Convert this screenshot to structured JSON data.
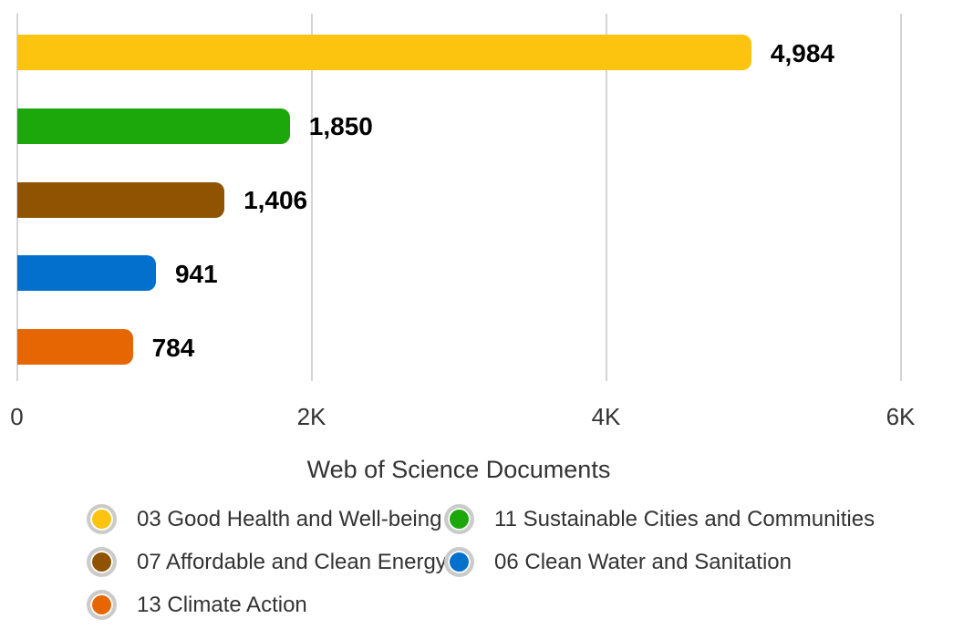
{
  "chart_data": {
    "type": "bar",
    "orientation": "horizontal",
    "title": "",
    "xlabel": "Web of Science Documents",
    "ylabel": "",
    "categories": [
      "03 Good Health and Well-being",
      "11 Sustainable Cities and Communities",
      "07 Affordable and Clean Energy",
      "06 Clean Water and Sanitation",
      "13 Climate Action"
    ],
    "values": [
      4984,
      1850,
      1406,
      941,
      784
    ],
    "value_labels": [
      "4,984",
      "1,850",
      "1,406",
      "941",
      "784"
    ],
    "colors": [
      "#FCC30F",
      "#1CA80A",
      "#8F5302",
      "#0470CE",
      "#E66603"
    ],
    "xlim": [
      0,
      6000
    ],
    "x_ticks": [
      {
        "label": "0",
        "value": 0
      },
      {
        "label": "2K",
        "value": 2000
      },
      {
        "label": "4K",
        "value": 4000
      },
      {
        "label": "6K",
        "value": 6000
      }
    ],
    "grid": "vertical-only",
    "gridline_color": "#d4d4d4",
    "legend_position": "bottom"
  },
  "legend": {
    "items": [
      {
        "label": "03 Good Health and Well-being",
        "color": "#FCC30F"
      },
      {
        "label": "11 Sustainable Cities and Communities",
        "color": "#1CA80A"
      },
      {
        "label": "07 Affordable and Clean Energy",
        "color": "#8F5302"
      },
      {
        "label": "06 Clean Water and Sanitation",
        "color": "#0470CE"
      },
      {
        "label": "13 Climate Action",
        "color": "#E66603"
      }
    ]
  }
}
